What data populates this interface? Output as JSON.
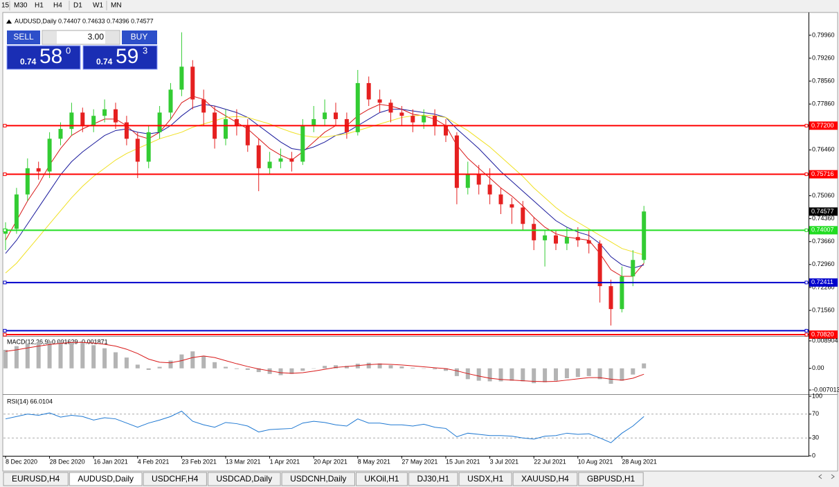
{
  "toolbar": {
    "timeframes": [
      "15",
      "M30",
      "H1",
      "H4",
      "D1",
      "W1",
      "MN"
    ]
  },
  "trade_panel": {
    "sell": "SELL",
    "lots": "3.00",
    "buy": "BUY",
    "bid": {
      "prefix": "0.74",
      "main": "58",
      "sup": "0"
    },
    "ask": {
      "prefix": "0.74",
      "main": "59",
      "sup": "3"
    }
  },
  "chart_data": [
    {
      "type": "candlestick",
      "title": "AUDUSD,Daily 0.74407 0.74633 0.74396 0.74577",
      "categories": [
        "8 Dec 2020",
        null,
        null,
        null,
        "28 Dec 2020",
        null,
        null,
        null,
        "16 Jan 2021",
        null,
        null,
        null,
        "4 Feb 2021",
        null,
        null,
        null,
        "23 Feb 2021",
        null,
        null,
        null,
        "13 Mar 2021",
        null,
        null,
        null,
        "1 Apr 2021",
        null,
        null,
        null,
        "20 Apr 2021",
        null,
        null,
        null,
        "8 May 2021",
        null,
        null,
        null,
        "27 May 2021",
        null,
        null,
        null,
        "15 Jun 2021",
        null,
        null,
        null,
        "3 Jul 2021",
        null,
        null,
        null,
        "22 Jul 2021",
        null,
        null,
        null,
        "10 Aug 2021",
        null,
        null,
        null,
        "28 Aug 2021",
        null,
        null
      ],
      "open": [
        0.739,
        0.7405,
        0.751,
        0.759,
        0.758,
        0.768,
        0.771,
        0.776,
        0.772,
        0.775,
        0.777,
        0.773,
        0.768,
        0.761,
        0.77,
        0.776,
        0.783,
        0.79,
        0.78,
        0.776,
        0.768,
        0.774,
        0.772,
        0.766,
        0.759,
        0.761,
        0.762,
        0.761,
        0.772,
        0.774,
        0.776,
        0.774,
        0.77,
        0.785,
        0.78,
        0.779,
        0.776,
        0.775,
        0.773,
        0.775,
        0.772,
        0.769,
        0.753,
        0.757,
        0.754,
        0.751,
        0.748,
        0.747,
        0.742,
        0.737,
        0.7385,
        0.736,
        0.738,
        0.737,
        0.736,
        0.723,
        0.716,
        0.726,
        0.731
      ],
      "high": [
        0.7425,
        0.753,
        0.762,
        0.761,
        0.77,
        0.773,
        0.779,
        0.7775,
        0.777,
        0.78,
        0.779,
        0.775,
        0.77,
        0.772,
        0.778,
        0.785,
        0.8005,
        0.792,
        0.783,
        0.778,
        0.777,
        0.777,
        0.774,
        0.768,
        0.764,
        0.765,
        0.764,
        0.774,
        0.778,
        0.78,
        0.779,
        0.776,
        0.789,
        0.787,
        0.783,
        0.78,
        0.778,
        0.777,
        0.777,
        0.777,
        0.774,
        0.77,
        0.761,
        0.76,
        0.759,
        0.753,
        0.75,
        0.749,
        0.744,
        0.74,
        0.74,
        0.741,
        0.741,
        0.74,
        0.737,
        0.725,
        0.729,
        0.734,
        0.7475
      ],
      "low": [
        0.734,
        0.739,
        0.749,
        0.7555,
        0.756,
        0.766,
        0.769,
        0.77,
        0.77,
        0.773,
        0.771,
        0.766,
        0.756,
        0.759,
        0.768,
        0.774,
        0.781,
        0.777,
        0.772,
        0.765,
        0.766,
        0.769,
        0.764,
        0.752,
        0.757,
        0.759,
        0.758,
        0.76,
        0.77,
        0.772,
        0.772,
        0.768,
        0.769,
        0.778,
        0.776,
        0.773,
        0.772,
        0.77,
        0.771,
        0.769,
        0.767,
        0.748,
        0.751,
        0.751,
        0.748,
        0.745,
        0.742,
        0.74,
        0.734,
        0.729,
        0.734,
        0.734,
        0.735,
        0.733,
        0.718,
        0.711,
        0.715,
        0.723,
        0.73
      ],
      "close": [
        0.7405,
        0.751,
        0.759,
        0.758,
        0.768,
        0.771,
        0.776,
        0.772,
        0.775,
        0.777,
        0.773,
        0.768,
        0.761,
        0.77,
        0.776,
        0.783,
        0.79,
        0.78,
        0.776,
        0.768,
        0.774,
        0.772,
        0.766,
        0.759,
        0.761,
        0.762,
        0.761,
        0.772,
        0.774,
        0.776,
        0.774,
        0.77,
        0.785,
        0.78,
        0.779,
        0.776,
        0.775,
        0.773,
        0.775,
        0.772,
        0.769,
        0.753,
        0.757,
        0.754,
        0.751,
        0.748,
        0.747,
        0.742,
        0.737,
        0.7385,
        0.736,
        0.738,
        0.737,
        0.736,
        0.723,
        0.716,
        0.726,
        0.731,
        0.7458
      ],
      "up_color": "#33cc33",
      "down_color": "#e52020",
      "series": [
        {
          "color": "#d81818",
          "values": [
            0.737,
            0.743,
            0.749,
            0.754,
            0.76,
            0.765,
            0.769,
            0.771,
            0.7725,
            0.774,
            0.774,
            0.772,
            0.769,
            0.768,
            0.77,
            0.774,
            0.779,
            0.781,
            0.78,
            0.777,
            0.775,
            0.773,
            0.771,
            0.768,
            0.765,
            0.763,
            0.7615,
            0.764,
            0.767,
            0.77,
            0.772,
            0.772,
            0.775,
            0.777,
            0.7785,
            0.778,
            0.777,
            0.7755,
            0.775,
            0.774,
            0.772,
            0.766,
            0.762,
            0.759,
            0.756,
            0.753,
            0.7505,
            0.7475,
            0.744,
            0.741,
            0.739,
            0.738,
            0.7375,
            0.737,
            0.733,
            0.728,
            0.726,
            0.726,
            0.73
          ]
        },
        {
          "color": "#1a1a9c",
          "values": [
            0.733,
            0.737,
            0.742,
            0.747,
            0.752,
            0.757,
            0.761,
            0.764,
            0.7665,
            0.769,
            0.7705,
            0.771,
            0.77,
            0.7695,
            0.77,
            0.772,
            0.775,
            0.7775,
            0.7785,
            0.778,
            0.777,
            0.776,
            0.7745,
            0.772,
            0.7695,
            0.767,
            0.765,
            0.7645,
            0.7655,
            0.767,
            0.769,
            0.77,
            0.772,
            0.774,
            0.776,
            0.777,
            0.777,
            0.7765,
            0.776,
            0.7755,
            0.7745,
            0.771,
            0.768,
            0.765,
            0.7615,
            0.758,
            0.755,
            0.752,
            0.749,
            0.746,
            0.743,
            0.741,
            0.7395,
            0.7385,
            0.736,
            0.732,
            0.7295,
            0.7285,
            0.7295
          ]
        },
        {
          "color": "#f0e020",
          "values": [
            0.727,
            0.73,
            0.734,
            0.738,
            0.742,
            0.746,
            0.75,
            0.7535,
            0.7565,
            0.759,
            0.7615,
            0.7635,
            0.765,
            0.7665,
            0.768,
            0.769,
            0.77,
            0.7715,
            0.7725,
            0.7735,
            0.7745,
            0.7748,
            0.7745,
            0.7735,
            0.7725,
            0.7712,
            0.77,
            0.769,
            0.7685,
            0.7685,
            0.769,
            0.7695,
            0.7705,
            0.7715,
            0.7725,
            0.7735,
            0.7745,
            0.775,
            0.7752,
            0.775,
            0.7745,
            0.7725,
            0.7705,
            0.768,
            0.7655,
            0.7625,
            0.7595,
            0.7565,
            0.753,
            0.75,
            0.747,
            0.7445,
            0.7425,
            0.7405,
            0.7385,
            0.7365,
            0.7345,
            0.7335,
            0.7325
          ]
        }
      ],
      "levels": [
        {
          "value": 0.772,
          "label": "0.77200",
          "color": "#ff0000"
        },
        {
          "value": 0.75716,
          "label": "0.75716",
          "color": "#ff0000"
        },
        {
          "value": 0.74007,
          "label": "0.74007",
          "color": "#22dd22"
        },
        {
          "value": 0.72411,
          "label": "0.72411",
          "color": "#0000cc"
        },
        {
          "value": 0.7094,
          "color": "#0000cc"
        },
        {
          "value": 0.7082,
          "label": "0.70820",
          "color": "#ff0000"
        }
      ],
      "last_price": 0.74577,
      "ylim": [
        0.708,
        0.8019
      ],
      "yticks": [
        {
          "value": 0.7996,
          "label": "0.79960"
        },
        {
          "value": 0.7926,
          "label": "0.79260"
        },
        {
          "value": 0.7856,
          "label": "0.78560"
        },
        {
          "value": 0.7786,
          "label": "0.77860"
        },
        {
          "value": 0.7646,
          "label": "0.76460"
        },
        {
          "value": 0.7506,
          "label": "0.75060"
        },
        {
          "value": 0.7436,
          "label": "0.74360"
        },
        {
          "value": 0.7366,
          "label": "0.73660"
        },
        {
          "value": 0.7296,
          "label": "0.72960"
        },
        {
          "value": 0.7226,
          "label": "0.72260"
        },
        {
          "value": 0.7156,
          "label": "0.71560"
        }
      ]
    },
    {
      "type": "macd",
      "title": "MACD(12,26,9) 0.001629 -0.001871",
      "color": "#b4b4b4",
      "values": [
        0.006,
        0.0072,
        0.008,
        0.0085,
        0.0088,
        0.0088,
        0.0086,
        0.0082,
        0.0075,
        0.0065,
        0.0052,
        0.0035,
        0.0012,
        -0.0005,
        0.0005,
        0.0025,
        0.0045,
        0.0055,
        0.004,
        0.002,
        0.0005,
        -0.0002,
        -0.0005,
        -0.0012,
        -0.0018,
        -0.0022,
        -0.0018,
        -0.0008,
        0.0,
        0.0008,
        0.001,
        0.0008,
        0.0015,
        0.0018,
        0.0016,
        0.001,
        0.0006,
        0.0002,
        0.0,
        -0.0003,
        -0.0008,
        -0.0025,
        -0.0035,
        -0.004,
        -0.0042,
        -0.0042,
        -0.004,
        -0.0042,
        -0.0048,
        -0.0045,
        -0.004,
        -0.0032,
        -0.0028,
        -0.0025,
        -0.0035,
        -0.005,
        -0.004,
        -0.002,
        0.0016
      ],
      "signal": {
        "color": "#d81818",
        "values": [
          0.0055,
          0.006,
          0.0066,
          0.0072,
          0.0077,
          0.0081,
          0.0084,
          0.0084,
          0.0082,
          0.0078,
          0.0072,
          0.0062,
          0.0048,
          0.003,
          0.002,
          0.0018,
          0.0025,
          0.0035,
          0.004,
          0.0035,
          0.0025,
          0.0015,
          0.0006,
          -0.0002,
          -0.0008,
          -0.0014,
          -0.0016,
          -0.0014,
          -0.0009,
          -0.0003,
          0.0003,
          0.0006,
          0.0009,
          0.0012,
          0.0014,
          0.0013,
          0.0011,
          0.0008,
          0.0005,
          0.0002,
          -0.0001,
          -0.0008,
          -0.0017,
          -0.0025,
          -0.0032,
          -0.0036,
          -0.0038,
          -0.004,
          -0.0042,
          -0.0043,
          -0.0042,
          -0.0038,
          -0.0034,
          -0.003,
          -0.003,
          -0.0035,
          -0.0038,
          -0.0032,
          -0.0019
        ]
      },
      "ylim": [
        -0.00813,
        0.01003
      ],
      "yticks": [
        {
          "value": 0.008904,
          "label": "0.008904"
        },
        {
          "value": 0,
          "label": "0.00"
        },
        {
          "value": -0.007013,
          "label": "-0.007013"
        }
      ]
    },
    {
      "type": "line",
      "title": "RSI(14) 66.0104",
      "color": "#1e78d2",
      "values": [
        62,
        66,
        70,
        68,
        72,
        65,
        68,
        66,
        60,
        64,
        62,
        55,
        48,
        55,
        60,
        66,
        75,
        58,
        52,
        48,
        56,
        54,
        50,
        40,
        44,
        45,
        46,
        55,
        58,
        56,
        52,
        50,
        62,
        55,
        55,
        52,
        52,
        50,
        53,
        48,
        46,
        32,
        38,
        36,
        34,
        34,
        33,
        30,
        28,
        33,
        34,
        38,
        36,
        37,
        30,
        22,
        38,
        50,
        66
      ],
      "levels": [
        70,
        30
      ],
      "ylim": [
        0,
        100
      ],
      "yticks": [
        100,
        70,
        30,
        0
      ]
    }
  ],
  "tabs": {
    "items": [
      "EURUSD,H4",
      "AUDUSD,Daily",
      "USDCHF,H4",
      "USDCAD,Daily",
      "USDCNH,Daily",
      "UKOil,H1",
      "DJ30,H1",
      "USDX,H1",
      "XAUUSD,H4",
      "GBPUSD,H1"
    ],
    "active": 1
  }
}
